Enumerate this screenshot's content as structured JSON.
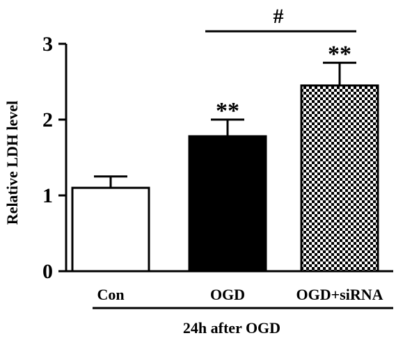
{
  "chart_data": {
    "type": "bar",
    "categories": [
      "Con",
      "OGD",
      "OGD+siRNA"
    ],
    "values": [
      1.1,
      1.78,
      2.45
    ],
    "error": [
      0.15,
      0.22,
      0.3
    ],
    "fills": [
      "white",
      "black",
      "checkered"
    ],
    "ylabel": "Relative LDH  level",
    "group_label": "24h after OGD",
    "ylim": [
      0,
      3
    ],
    "yticks": [
      "0",
      "1",
      "2",
      "3"
    ],
    "significance": [
      {
        "bar": 1,
        "label": "**"
      },
      {
        "bar": 2,
        "label": "**"
      }
    ],
    "comparison": {
      "from": 1,
      "to": 2,
      "label": "#"
    },
    "grid": false
  }
}
